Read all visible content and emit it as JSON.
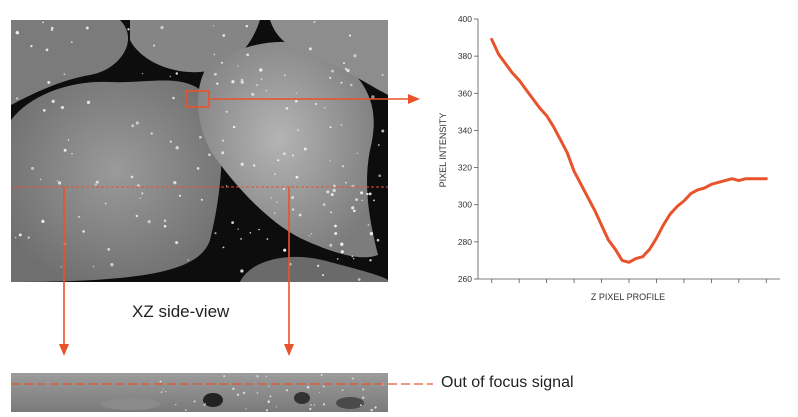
{
  "labels": {
    "xz_side_view": "XZ side-view",
    "out_of_focus": "Out of focus signal"
  },
  "colors": {
    "accent": "#e8532b",
    "microscopy_bg": "#0d0d0d",
    "cell_gray": "#8f8f8f",
    "axis": "#555555"
  },
  "chart_data": {
    "type": "line",
    "xlabel": "Z PIXEL PROFILE",
    "ylabel": "PIXEL INTENSITY",
    "ylim": [
      260,
      400
    ],
    "yticks": [
      "260",
      "280",
      "300",
      "320",
      "340",
      "360",
      "380",
      "400"
    ],
    "x": [
      0,
      1,
      2,
      3,
      4,
      5,
      6,
      7,
      8,
      9,
      10,
      11,
      12,
      13,
      14,
      15,
      16,
      17,
      18,
      19,
      20,
      21,
      22,
      23,
      24,
      25,
      26,
      27,
      28,
      29,
      30,
      31,
      32,
      33,
      34,
      35,
      36,
      37,
      38,
      39,
      40
    ],
    "series": [
      {
        "values": [
          389,
          381,
          376,
          371,
          367,
          362,
          357,
          352,
          348,
          342,
          335,
          328,
          318,
          311,
          304,
          297,
          289,
          281,
          276,
          270,
          269,
          271,
          272,
          276,
          282,
          289,
          295,
          299,
          302,
          306,
          308,
          309,
          311,
          312,
          313,
          314,
          313,
          314,
          314,
          314,
          314
        ]
      }
    ]
  }
}
